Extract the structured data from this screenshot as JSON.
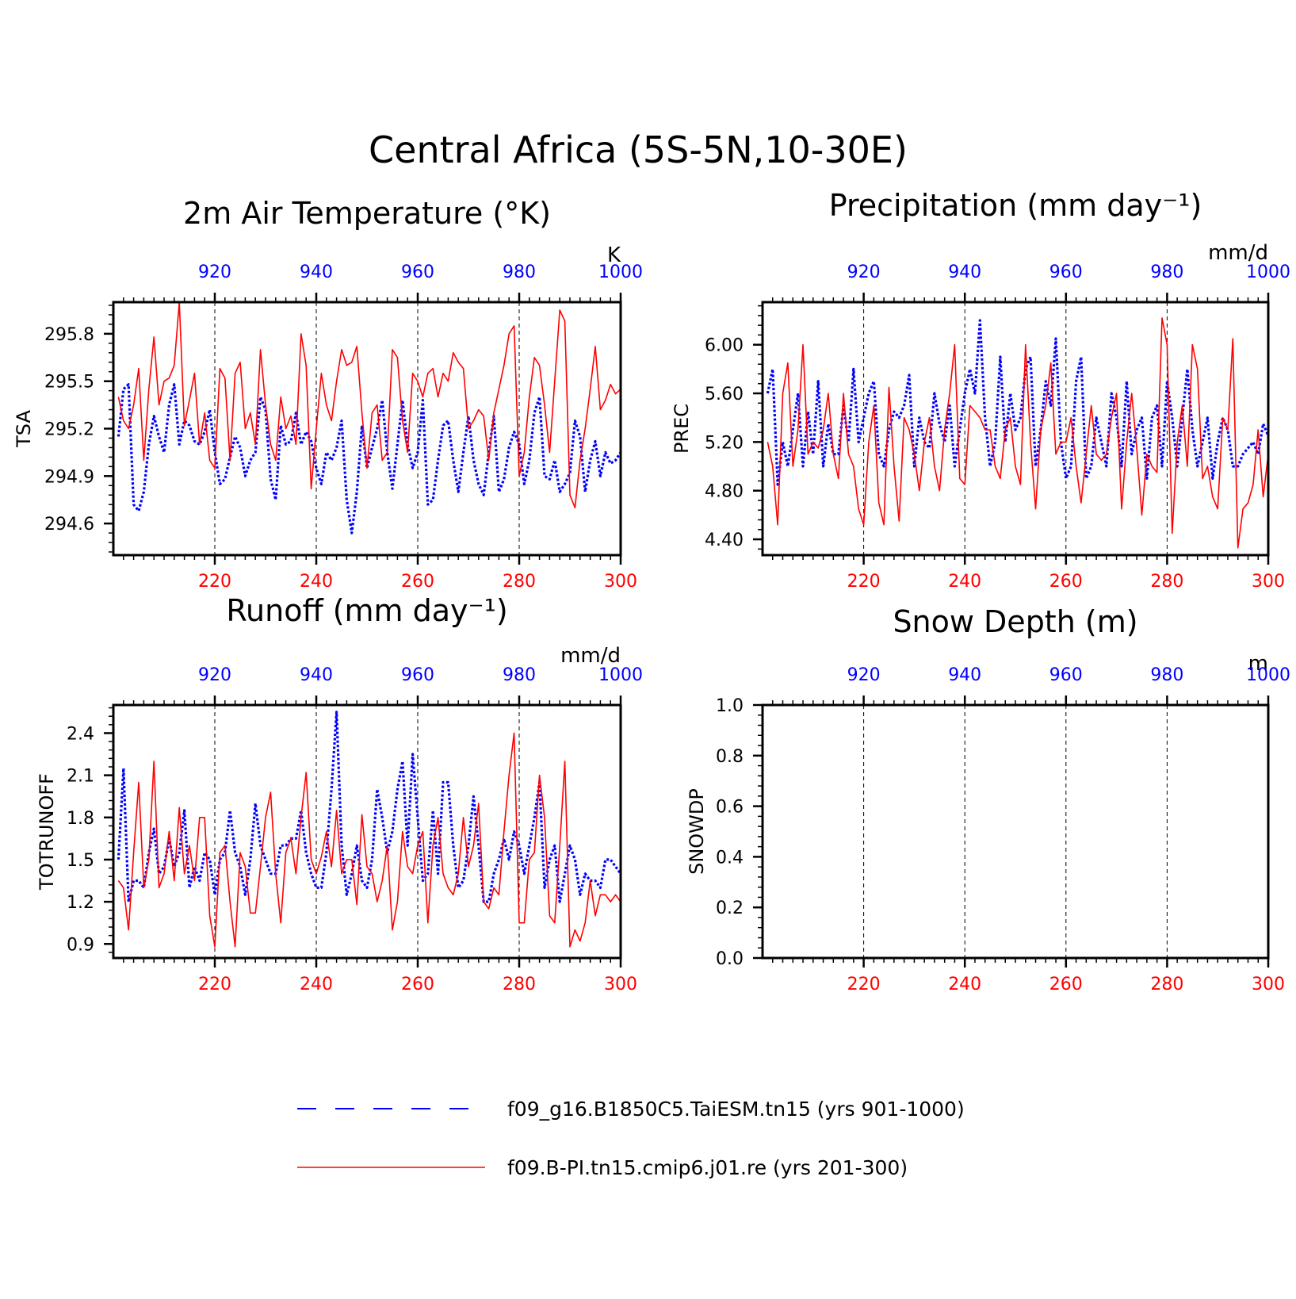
{
  "figure_title": "Central Africa (5S-5N,10-30E)",
  "colors": {
    "series_a": "#0000ff",
    "series_b": "#ff0000",
    "axis": "#000000"
  },
  "legend": {
    "items": [
      {
        "label": "f09_g16.B1850C5.TaiESM.tn15 (yrs 901-1000)",
        "color": "#0000ff",
        "style": "dashed"
      },
      {
        "label": "f09.B-PI.tn15.cmip6.j01.re (yrs 201-300)",
        "color": "#ff0000",
        "style": "solid"
      }
    ]
  },
  "chart_data": [
    {
      "type": "line",
      "title": "2m Air Temperature (°K)",
      "ylabel": "TSA",
      "unit": "K",
      "ylim": [
        294.4,
        296.0
      ],
      "yticks": [
        "294.6",
        "294.9",
        "295.2",
        "295.5",
        "295.8"
      ],
      "x_bottom": {
        "range": [
          200,
          300
        ],
        "ticks": [
          "220",
          "240",
          "260",
          "280",
          "300"
        ]
      },
      "x_top": {
        "range": [
          900,
          1000
        ],
        "ticks": [
          "920",
          "940",
          "960",
          "980",
          "1000"
        ]
      },
      "grid": "dashed vertical at ticks",
      "series": [
        {
          "name": "f09_g16.B1850C5.TaiESM.tn15 (yrs 901-1000)",
          "color": "#0000ff",
          "style": "dotted",
          "values": [
            295.15,
            295.45,
            295.48,
            294.72,
            294.68,
            294.8,
            295.1,
            295.28,
            295.15,
            295.05,
            295.35,
            295.48,
            295.1,
            295.25,
            295.22,
            295.12,
            295.1,
            295.18,
            295.32,
            295.05,
            294.85,
            294.88,
            295.02,
            295.15,
            295.08,
            294.9,
            295.0,
            295.05,
            295.4,
            295.32,
            294.88,
            294.75,
            295.22,
            295.1,
            295.12,
            295.3,
            295.1,
            295.18,
            295.12,
            294.95,
            294.85,
            295.05,
            295.0,
            295.08,
            295.25,
            294.75,
            294.54,
            294.8,
            295.22,
            294.95,
            295.08,
            295.2,
            295.38,
            295.05,
            294.82,
            295.1,
            295.38,
            295.1,
            294.95,
            295.05,
            295.38,
            294.72,
            294.75,
            295.0,
            295.22,
            295.25,
            295.0,
            294.8,
            295.05,
            295.28,
            295.0,
            294.85,
            294.78,
            295.05,
            295.28,
            294.8,
            294.88,
            295.08,
            295.18,
            295.1,
            294.85,
            295.0,
            295.3,
            295.4,
            294.9,
            294.88,
            295.0,
            294.8,
            294.85,
            294.92,
            295.25,
            295.15,
            294.8,
            295.0,
            295.12,
            294.9,
            295.05,
            294.98,
            295.0,
            295.05
          ]
        },
        {
          "name": "f09.B-PI.tn15.cmip6.j01.re (yrs 201-300)",
          "color": "#ff0000",
          "style": "solid",
          "values": [
            295.4,
            295.25,
            295.2,
            295.35,
            295.58,
            295.0,
            295.45,
            295.78,
            295.35,
            295.5,
            295.52,
            295.6,
            296.0,
            295.22,
            295.38,
            295.55,
            295.1,
            295.3,
            295.0,
            294.95,
            295.58,
            295.52,
            295.0,
            295.55,
            295.62,
            295.2,
            295.3,
            295.1,
            295.7,
            295.35,
            295.1,
            295.0,
            295.4,
            295.2,
            295.28,
            295.1,
            295.8,
            295.6,
            294.82,
            295.2,
            295.55,
            295.35,
            295.25,
            295.5,
            295.7,
            295.6,
            295.62,
            295.72,
            295.3,
            294.95,
            295.3,
            295.35,
            295.0,
            295.05,
            295.7,
            295.65,
            295.25,
            295.05,
            295.55,
            295.5,
            295.4,
            295.55,
            295.58,
            295.4,
            295.55,
            295.5,
            295.68,
            295.62,
            295.58,
            295.2,
            295.25,
            295.32,
            295.28,
            295.0,
            295.3,
            295.45,
            295.6,
            295.8,
            295.85,
            294.9,
            295.05,
            295.4,
            295.65,
            295.6,
            295.35,
            295.05,
            295.5,
            295.95,
            295.88,
            294.78,
            294.7,
            295.0,
            295.2,
            295.45,
            295.72,
            295.32,
            295.38,
            295.48,
            295.42,
            295.45
          ]
        }
      ]
    },
    {
      "type": "line",
      "title": "Precipitation (mm day⁻¹)",
      "ylabel": "PREC",
      "unit": "mm/d",
      "ylim": [
        4.27,
        6.35
      ],
      "yticks": [
        "4.40",
        "4.80",
        "5.20",
        "5.60",
        "6.00"
      ],
      "x_bottom": {
        "range": [
          200,
          300
        ],
        "ticks": [
          "220",
          "240",
          "260",
          "280",
          "300"
        ]
      },
      "x_top": {
        "range": [
          900,
          1000
        ],
        "ticks": [
          "920",
          "940",
          "960",
          "980",
          "1000"
        ]
      },
      "grid": "dashed vertical at ticks",
      "series": [
        {
          "name": "f09_g16.B1850C5.TaiESM.tn15 (yrs 901-1000)",
          "color": "#0000ff",
          "style": "dotted",
          "values": [
            5.6,
            5.8,
            4.85,
            5.2,
            5.0,
            5.3,
            5.6,
            5.0,
            5.45,
            5.1,
            5.7,
            5.0,
            5.35,
            5.1,
            5.1,
            5.5,
            5.2,
            5.8,
            5.2,
            5.4,
            5.6,
            5.7,
            5.1,
            5.0,
            5.3,
            5.45,
            5.4,
            5.5,
            5.75,
            5.0,
            5.4,
            5.2,
            5.15,
            5.6,
            5.35,
            5.2,
            5.5,
            5.0,
            5.3,
            5.6,
            5.8,
            5.6,
            6.2,
            5.4,
            5.0,
            5.2,
            5.9,
            5.2,
            5.6,
            5.3,
            5.4,
            5.8,
            5.9,
            5.0,
            5.3,
            5.7,
            5.5,
            6.05,
            5.2,
            4.9,
            5.0,
            5.7,
            5.9,
            4.9,
            5.0,
            5.4,
            5.2,
            5.0,
            5.6,
            5.4,
            5.0,
            5.7,
            5.1,
            5.3,
            5.4,
            4.9,
            5.4,
            5.5,
            5.0,
            5.7,
            5.4,
            5.0,
            5.4,
            5.8,
            5.3,
            5.0,
            5.2,
            5.4,
            4.9,
            5.2,
            5.4,
            5.3,
            5.0,
            5.0,
            5.1,
            5.15,
            5.2,
            5.1,
            5.35,
            5.25
          ]
        },
        {
          "name": "f09.B-PI.tn15.cmip6.j01.re (yrs 201-300)",
          "color": "#ff0000",
          "style": "solid",
          "values": [
            5.2,
            5.0,
            4.52,
            5.6,
            5.85,
            5.0,
            5.3,
            6.0,
            5.1,
            5.2,
            5.15,
            5.3,
            5.6,
            5.1,
            4.9,
            5.6,
            5.1,
            5.0,
            4.65,
            4.52,
            5.2,
            5.5,
            4.7,
            4.52,
            5.65,
            5.0,
            4.55,
            5.4,
            5.3,
            5.1,
            4.8,
            5.2,
            5.4,
            5.0,
            4.8,
            5.3,
            5.6,
            6.0,
            4.9,
            4.85,
            5.5,
            5.45,
            5.4,
            5.3,
            5.3,
            5.0,
            4.9,
            5.3,
            5.4,
            5.0,
            4.85,
            6.0,
            5.2,
            4.65,
            5.3,
            5.5,
            5.85,
            5.1,
            5.2,
            5.2,
            5.4,
            5.0,
            4.7,
            5.1,
            5.5,
            5.1,
            5.05,
            5.1,
            5.4,
            5.6,
            4.65,
            5.2,
            5.6,
            5.15,
            4.6,
            5.1,
            5.0,
            4.95,
            6.22,
            6.0,
            4.45,
            5.2,
            5.5,
            5.0,
            6.0,
            5.8,
            4.9,
            5.0,
            4.75,
            4.65,
            5.4,
            5.3,
            6.05,
            4.33,
            4.65,
            4.7,
            4.85,
            5.3,
            4.75,
            5.1
          ]
        }
      ]
    },
    {
      "type": "line",
      "title": "Runoff (mm day⁻¹)",
      "ylabel": "TOTRUNOFF",
      "unit": "mm/d",
      "ylim": [
        0.8,
        2.6
      ],
      "yticks": [
        "0.9",
        "1.2",
        "1.5",
        "1.8",
        "2.1",
        "2.4"
      ],
      "x_bottom": {
        "range": [
          200,
          300
        ],
        "ticks": [
          "220",
          "240",
          "260",
          "280",
          "300"
        ]
      },
      "x_top": {
        "range": [
          900,
          1000
        ],
        "ticks": [
          "920",
          "940",
          "960",
          "980",
          "1000"
        ]
      },
      "grid": "dashed vertical at ticks",
      "series": [
        {
          "name": "f09_g16.B1850C5.TaiESM.tn15 (yrs 901-1000)",
          "color": "#0000ff",
          "style": "dotted",
          "values": [
            1.5,
            2.15,
            1.2,
            1.35,
            1.35,
            1.3,
            1.55,
            1.72,
            1.4,
            1.45,
            1.65,
            1.45,
            1.55,
            1.85,
            1.3,
            1.45,
            1.35,
            1.55,
            1.5,
            1.25,
            1.5,
            1.55,
            1.85,
            1.55,
            1.45,
            1.25,
            1.5,
            1.9,
            1.6,
            1.5,
            1.4,
            1.4,
            1.6,
            1.6,
            1.65,
            1.65,
            1.85,
            1.55,
            1.4,
            1.3,
            1.3,
            1.55,
            2.0,
            2.55,
            1.6,
            1.25,
            1.4,
            1.6,
            1.35,
            1.3,
            1.5,
            2.0,
            1.8,
            1.55,
            1.7,
            2.0,
            2.2,
            1.6,
            2.25,
            1.8,
            1.35,
            1.4,
            1.85,
            1.4,
            2.05,
            2.05,
            1.6,
            1.3,
            1.35,
            1.6,
            1.95,
            1.6,
            1.2,
            1.2,
            1.4,
            1.5,
            1.65,
            1.5,
            1.7,
            1.6,
            1.4,
            1.6,
            1.8,
            2.05,
            1.3,
            1.5,
            1.6,
            1.2,
            1.4,
            1.6,
            1.5,
            1.25,
            1.4,
            1.35,
            1.35,
            1.3,
            1.5,
            1.5,
            1.45,
            1.4
          ]
        },
        {
          "name": "f09.B-PI.tn15.cmip6.j01.re (yrs 201-300)",
          "color": "#ff0000",
          "style": "solid",
          "values": [
            1.35,
            1.3,
            1.0,
            1.55,
            2.05,
            1.3,
            1.5,
            2.2,
            1.3,
            1.4,
            1.7,
            1.35,
            1.87,
            1.4,
            1.6,
            1.35,
            1.8,
            1.8,
            1.1,
            0.88,
            1.55,
            1.6,
            1.2,
            0.88,
            1.55,
            1.45,
            1.12,
            1.12,
            1.45,
            1.8,
            1.98,
            1.4,
            1.05,
            1.55,
            1.65,
            1.4,
            1.8,
            2.12,
            1.5,
            1.4,
            1.52,
            1.7,
            1.45,
            1.85,
            1.4,
            1.5,
            1.5,
            1.18,
            1.82,
            1.45,
            1.4,
            1.2,
            1.35,
            1.6,
            1.0,
            1.2,
            1.7,
            1.45,
            1.4,
            1.6,
            1.7,
            1.05,
            1.6,
            1.8,
            1.4,
            1.3,
            1.25,
            1.4,
            1.8,
            1.45,
            1.6,
            1.9,
            1.2,
            1.15,
            1.3,
            1.25,
            1.7,
            2.1,
            2.4,
            1.05,
            1.05,
            1.5,
            1.55,
            2.1,
            1.8,
            1.1,
            1.05,
            1.6,
            2.2,
            0.88,
            1.0,
            0.92,
            1.05,
            1.35,
            1.1,
            1.25,
            1.25,
            1.2,
            1.25,
            1.2
          ]
        }
      ]
    },
    {
      "type": "line",
      "title": "Snow Depth (m)",
      "ylabel": "SNOWDP",
      "unit": "m",
      "ylim": [
        0.0,
        1.0
      ],
      "yticks": [
        "0.0",
        "0.2",
        "0.4",
        "0.6",
        "0.8",
        "1.0"
      ],
      "x_bottom": {
        "range": [
          200,
          300
        ],
        "ticks": [
          "220",
          "240",
          "260",
          "280",
          "300"
        ]
      },
      "x_top": {
        "range": [
          900,
          1000
        ],
        "ticks": [
          "920",
          "940",
          "960",
          "980",
          "1000"
        ]
      },
      "grid": "dashed vertical at ticks",
      "series": []
    }
  ]
}
